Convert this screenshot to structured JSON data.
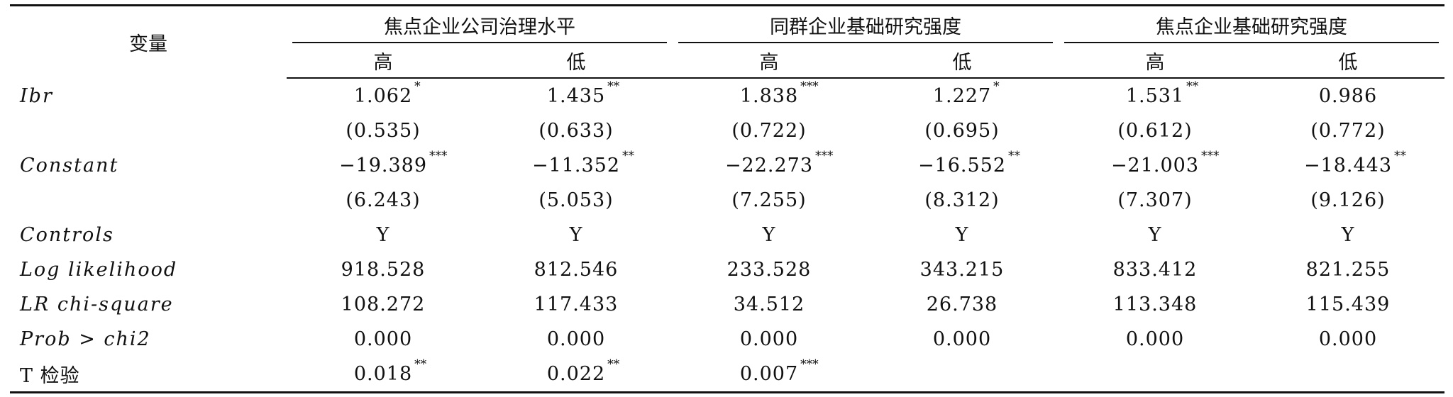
{
  "header": {
    "variable_label": "变量",
    "groups": [
      {
        "title": "焦点企业公司治理水平",
        "high": "高",
        "low": "低"
      },
      {
        "title": "同群企业基础研究强度",
        "high": "高",
        "low": "低"
      },
      {
        "title": "焦点企业基础研究强度",
        "high": "高",
        "low": "低"
      }
    ]
  },
  "rows": [
    {
      "label": "Ibr",
      "italic": true,
      "cells": [
        {
          "v": "1.062",
          "s": "*"
        },
        {
          "v": "1.435",
          "s": "**"
        },
        {
          "v": "1.838",
          "s": "***"
        },
        {
          "v": "1.227",
          "s": "*"
        },
        {
          "v": "1.531",
          "s": "**"
        },
        {
          "v": "0.986",
          "s": ""
        }
      ]
    },
    {
      "label": "",
      "italic": true,
      "cells": [
        {
          "v": "(0.535)",
          "s": ""
        },
        {
          "v": "(0.633)",
          "s": ""
        },
        {
          "v": "(0.722)",
          "s": ""
        },
        {
          "v": "(0.695)",
          "s": ""
        },
        {
          "v": "(0.612)",
          "s": ""
        },
        {
          "v": "(0.772)",
          "s": ""
        }
      ]
    },
    {
      "label": "Constant",
      "italic": true,
      "cells": [
        {
          "v": "−19.389",
          "s": "***"
        },
        {
          "v": "−11.352",
          "s": "**"
        },
        {
          "v": "−22.273",
          "s": "***"
        },
        {
          "v": "−16.552",
          "s": "**"
        },
        {
          "v": "−21.003",
          "s": "***"
        },
        {
          "v": "−18.443",
          "s": "**"
        }
      ]
    },
    {
      "label": "",
      "italic": true,
      "cells": [
        {
          "v": "(6.243)",
          "s": ""
        },
        {
          "v": "(5.053)",
          "s": ""
        },
        {
          "v": "(7.255)",
          "s": ""
        },
        {
          "v": "(8.312)",
          "s": ""
        },
        {
          "v": "(7.307)",
          "s": ""
        },
        {
          "v": "(9.126)",
          "s": ""
        }
      ]
    },
    {
      "label": "Controls",
      "italic": true,
      "cells": [
        {
          "v": "Y",
          "s": ""
        },
        {
          "v": "Y",
          "s": ""
        },
        {
          "v": "Y",
          "s": ""
        },
        {
          "v": "Y",
          "s": ""
        },
        {
          "v": "Y",
          "s": ""
        },
        {
          "v": "Y",
          "s": ""
        }
      ]
    },
    {
      "label": "Log likelihood",
      "italic": true,
      "cells": [
        {
          "v": "918.528",
          "s": ""
        },
        {
          "v": "812.546",
          "s": ""
        },
        {
          "v": "233.528",
          "s": ""
        },
        {
          "v": "343.215",
          "s": ""
        },
        {
          "v": "833.412",
          "s": ""
        },
        {
          "v": "821.255",
          "s": ""
        }
      ]
    },
    {
      "label": "LR chi-square",
      "italic": true,
      "cells": [
        {
          "v": "108.272",
          "s": ""
        },
        {
          "v": "117.433",
          "s": ""
        },
        {
          "v": "34.512",
          "s": ""
        },
        {
          "v": "26.738",
          "s": ""
        },
        {
          "v": "113.348",
          "s": ""
        },
        {
          "v": "115.439",
          "s": ""
        }
      ]
    },
    {
      "label": "Prob > chi2",
      "italic": true,
      "cells": [
        {
          "v": "0.000",
          "s": ""
        },
        {
          "v": "0.000",
          "s": ""
        },
        {
          "v": "0.000",
          "s": ""
        },
        {
          "v": "0.000",
          "s": ""
        },
        {
          "v": "0.000",
          "s": ""
        },
        {
          "v": "0.000",
          "s": ""
        }
      ]
    },
    {
      "label": "T 检验",
      "italic": false,
      "cells": [
        {
          "v": "0.018",
          "s": "**"
        },
        {
          "v": "0.022",
          "s": "**"
        },
        {
          "v": "0.007",
          "s": "***"
        },
        {
          "v": "",
          "s": ""
        },
        {
          "v": "",
          "s": ""
        },
        {
          "v": "",
          "s": ""
        }
      ]
    }
  ]
}
